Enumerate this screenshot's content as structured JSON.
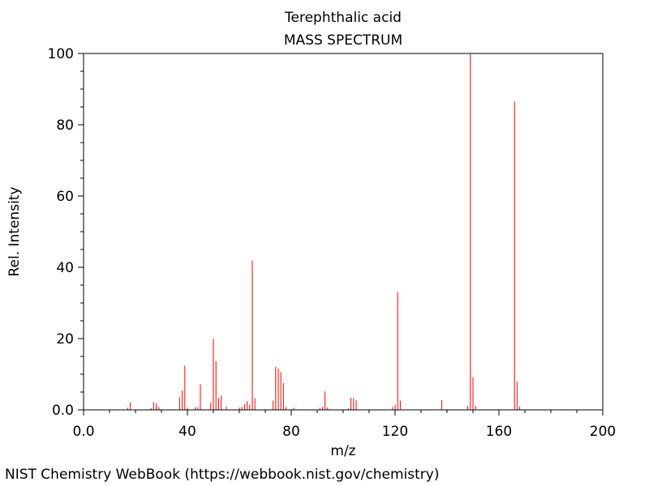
{
  "chart_data": {
    "type": "bar",
    "title": "Terephthalic acid",
    "subtitle": "MASS SPECTRUM",
    "xlabel": "m/z",
    "ylabel": "Rel. Intensity",
    "xlim": [
      0,
      200
    ],
    "ylim": [
      0,
      100
    ],
    "x_ticks": [
      "0.0",
      "40",
      "80",
      "120",
      "160",
      "200"
    ],
    "x_tick_values": [
      0,
      40,
      80,
      120,
      160,
      200
    ],
    "y_ticks": [
      "0.0",
      "20",
      "40",
      "60",
      "80",
      "100"
    ],
    "y_tick_values": [
      0,
      20,
      40,
      60,
      80,
      100
    ],
    "grid": false,
    "series": [
      {
        "color": "#ff0000",
        "peaks": [
          {
            "x": 17,
            "y": 0.6
          },
          {
            "x": 18,
            "y": 2.1
          },
          {
            "x": 26,
            "y": 0.5
          },
          {
            "x": 27,
            "y": 2.2
          },
          {
            "x": 28,
            "y": 1.8
          },
          {
            "x": 29,
            "y": 0.8
          },
          {
            "x": 37,
            "y": 3.6
          },
          {
            "x": 38,
            "y": 5.4
          },
          {
            "x": 39,
            "y": 12.4
          },
          {
            "x": 40,
            "y": 0.6
          },
          {
            "x": 43,
            "y": 0.7
          },
          {
            "x": 44,
            "y": 0.8
          },
          {
            "x": 45,
            "y": 7.2
          },
          {
            "x": 49,
            "y": 2.0
          },
          {
            "x": 50,
            "y": 19.9
          },
          {
            "x": 51,
            "y": 13.7
          },
          {
            "x": 52,
            "y": 3.3
          },
          {
            "x": 53,
            "y": 3.9
          },
          {
            "x": 55,
            "y": 0.9
          },
          {
            "x": 60,
            "y": 0.6
          },
          {
            "x": 61,
            "y": 0.9
          },
          {
            "x": 62,
            "y": 1.6
          },
          {
            "x": 63,
            "y": 2.4
          },
          {
            "x": 64,
            "y": 1.5
          },
          {
            "x": 65,
            "y": 41.9
          },
          {
            "x": 66,
            "y": 3.3
          },
          {
            "x": 73,
            "y": 2.6
          },
          {
            "x": 74,
            "y": 12.1
          },
          {
            "x": 75,
            "y": 11.6
          },
          {
            "x": 76,
            "y": 10.6
          },
          {
            "x": 77,
            "y": 7.5
          },
          {
            "x": 78,
            "y": 0.8
          },
          {
            "x": 81,
            "y": 0.6
          },
          {
            "x": 91,
            "y": 0.6
          },
          {
            "x": 92,
            "y": 0.8
          },
          {
            "x": 93,
            "y": 5.2
          },
          {
            "x": 94,
            "y": 0.7
          },
          {
            "x": 102,
            "y": 0.4
          },
          {
            "x": 103,
            "y": 3.4
          },
          {
            "x": 104,
            "y": 3.3
          },
          {
            "x": 105,
            "y": 2.7
          },
          {
            "x": 119,
            "y": 0.8
          },
          {
            "x": 120,
            "y": 1.3
          },
          {
            "x": 121,
            "y": 33.0
          },
          {
            "x": 122,
            "y": 2.6
          },
          {
            "x": 138,
            "y": 2.7
          },
          {
            "x": 148,
            "y": 1.1
          },
          {
            "x": 149,
            "y": 100.0
          },
          {
            "x": 150,
            "y": 9.1
          },
          {
            "x": 151,
            "y": 1.1
          },
          {
            "x": 166,
            "y": 86.5
          },
          {
            "x": 167,
            "y": 7.9
          },
          {
            "x": 168,
            "y": 0.9
          }
        ]
      }
    ]
  },
  "footer": {
    "source": "NIST Chemistry WebBook (https://webbook.nist.gov/chemistry)"
  }
}
